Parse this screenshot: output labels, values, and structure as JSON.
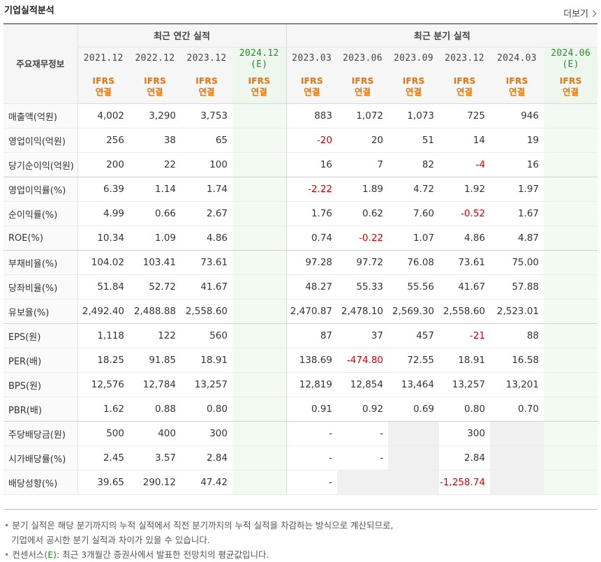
{
  "header": {
    "title": "기업실적분석",
    "more_label": "더보기"
  },
  "table": {
    "label_head": "주요재무정보",
    "annual_title": "최근 연간 실적",
    "quarter_title": "최근 분기 실적",
    "annual_periods": [
      {
        "year": "2021.12",
        "est": ""
      },
      {
        "year": "2022.12",
        "est": ""
      },
      {
        "year": "2023.12",
        "est": ""
      },
      {
        "year": "2024.12",
        "est": "(E)"
      }
    ],
    "quarter_periods": [
      {
        "year": "2023.03",
        "est": ""
      },
      {
        "year": "2023.06",
        "est": ""
      },
      {
        "year": "2023.09",
        "est": ""
      },
      {
        "year": "2023.12",
        "est": ""
      },
      {
        "year": "2024.03",
        "est": ""
      },
      {
        "year": "2024.06",
        "est": "(E)"
      }
    ],
    "ifrs_label": "IFRS",
    "consol_label": "연결",
    "rows": [
      {
        "label": "매출액(억원)",
        "vals": [
          "4,002",
          "3,290",
          "3,753",
          "",
          "883",
          "1,072",
          "1,073",
          "725",
          "946",
          ""
        ]
      },
      {
        "label": "영업이익(억원)",
        "vals": [
          "256",
          "38",
          "65",
          "",
          "-20",
          "20",
          "51",
          "14",
          "19",
          ""
        ]
      },
      {
        "label": "당기순이익(억원)",
        "vals": [
          "200",
          "22",
          "100",
          "",
          "16",
          "7",
          "82",
          "-4",
          "16",
          ""
        ]
      },
      {
        "label": "영업이익률(%)",
        "vals": [
          "6.39",
          "1.14",
          "1.74",
          "",
          "-2.22",
          "1.89",
          "4.72",
          "1.92",
          "1.97",
          ""
        ]
      },
      {
        "label": "순이익률(%)",
        "vals": [
          "4.99",
          "0.66",
          "2.67",
          "",
          "1.76",
          "0.62",
          "7.60",
          "-0.52",
          "1.67",
          ""
        ]
      },
      {
        "label": "ROE(%)",
        "vals": [
          "10.34",
          "1.09",
          "4.86",
          "",
          "0.74",
          "-0.22",
          "1.07",
          "4.86",
          "4.87",
          ""
        ]
      },
      {
        "label": "부채비율(%)",
        "vals": [
          "104.02",
          "103.41",
          "73.61",
          "",
          "97.28",
          "97.72",
          "76.08",
          "73.61",
          "75.00",
          ""
        ]
      },
      {
        "label": "당좌비율(%)",
        "vals": [
          "51.84",
          "52.72",
          "41.67",
          "",
          "48.27",
          "55.33",
          "55.56",
          "41.67",
          "57.88",
          ""
        ]
      },
      {
        "label": "유보율(%)",
        "vals": [
          "2,492.40",
          "2,488.88",
          "2,558.60",
          "",
          "2,470.87",
          "2,478.10",
          "2,569.30",
          "2,558.60",
          "2,523.01",
          ""
        ]
      },
      {
        "label": "EPS(원)",
        "vals": [
          "1,118",
          "122",
          "560",
          "",
          "87",
          "37",
          "457",
          "-21",
          "88",
          ""
        ]
      },
      {
        "label": "PER(배)",
        "vals": [
          "18.25",
          "91.85",
          "18.91",
          "",
          "138.69",
          "-474.80",
          "72.55",
          "18.91",
          "16.58",
          ""
        ]
      },
      {
        "label": "BPS(원)",
        "vals": [
          "12,576",
          "12,784",
          "13,257",
          "",
          "12,819",
          "12,854",
          "13,464",
          "13,257",
          "13,201",
          ""
        ]
      },
      {
        "label": "PBR(배)",
        "vals": [
          "1.62",
          "0.88",
          "0.80",
          "",
          "0.91",
          "0.92",
          "0.69",
          "0.80",
          "0.70",
          ""
        ]
      },
      {
        "label": "주당배당금(원)",
        "vals": [
          "500",
          "400",
          "300",
          "",
          "-",
          "-",
          "",
          "300",
          "",
          ""
        ]
      },
      {
        "label": "시가배당률(%)",
        "vals": [
          "2.45",
          "3.57",
          "2.84",
          "",
          "-",
          "-",
          "",
          "2.84",
          "",
          ""
        ]
      },
      {
        "label": "배당성향(%)",
        "vals": [
          "39.65",
          "290.12",
          "47.42",
          "",
          "-",
          "",
          "",
          "-1,258.74",
          "",
          ""
        ]
      }
    ]
  },
  "notes": {
    "line1": "분기 실적은 해당 분기까지의 누적 실적에서 직전 분기까지의 누적 실적을 차감하는 방식으로 계산되므로,",
    "line2": "기업에서 공시한 분기 실적과 차이가 있을 수 있습니다.",
    "line3a": "컨센서스",
    "line3b": "(E)",
    "line3c": ": 최근 3개월간 증권사에서 발표한 전망치의 평균값입니다."
  },
  "colors": {
    "negative": "#e00000",
    "ifrs": "#e8760b",
    "estimate": "#2a8a2a",
    "estimate_bg": "#f2faf2"
  }
}
